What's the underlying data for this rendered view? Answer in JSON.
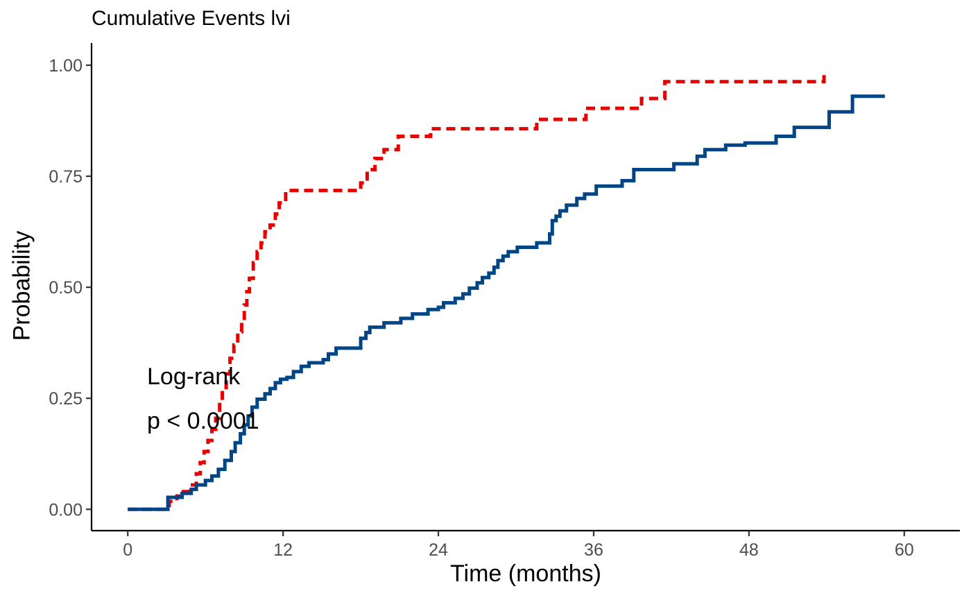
{
  "chart_data": {
    "type": "line",
    "title": "Cumulative Events lvi",
    "xlabel": "Time (months)",
    "ylabel": "Probability",
    "xlim": [
      -2.8,
      64.3
    ],
    "ylim": [
      -0.048,
      1.05
    ],
    "x_ticks": [
      0,
      12,
      24,
      36,
      48,
      60
    ],
    "y_ticks": [
      0.0,
      0.25,
      0.5,
      0.75,
      1.0
    ],
    "x_tick_labels": [
      "0",
      "12",
      "24",
      "36",
      "48",
      "60"
    ],
    "y_tick_labels": [
      "0.00",
      "0.25",
      "0.50",
      "0.75",
      "1.00"
    ],
    "grid": false,
    "annotations": [
      "Log-rank",
      "p < 0.0001"
    ],
    "colors": {
      "solid_series": "#004586",
      "dashed_series": "#e60000",
      "axis": "#000000",
      "tick_label": "#4d4d4d"
    },
    "series": [
      {
        "style": "solid",
        "color": "#004586",
        "x": [
          0,
          3.1,
          4.2,
          4.9,
          5.3,
          6.0,
          6.5,
          7.0,
          7.5,
          8.0,
          8.3,
          8.7,
          9.0,
          9.3,
          9.6,
          10.0,
          10.6,
          11.0,
          11.4,
          11.8,
          12.3,
          12.8,
          13.4,
          14.0,
          15.1,
          15.5,
          16.1,
          18.0,
          18.4,
          18.7,
          19.8,
          21.1,
          22.0,
          23.2,
          24.0,
          24.4,
          25.3,
          25.9,
          26.4,
          27.0,
          27.4,
          27.9,
          28.3,
          28.6,
          29.0,
          29.4,
          30.1,
          31.6,
          32.6,
          32.8,
          33.1,
          33.4,
          33.9,
          34.7,
          35.3,
          36.2,
          38.2,
          39.1,
          42.2,
          44.0,
          44.6,
          46.2,
          47.7,
          50.1,
          51.5,
          52.0,
          54.2,
          56.0,
          58.5
        ],
        "y": [
          0.0,
          0.027,
          0.036,
          0.045,
          0.055,
          0.065,
          0.075,
          0.09,
          0.11,
          0.13,
          0.15,
          0.17,
          0.19,
          0.21,
          0.23,
          0.248,
          0.26,
          0.272,
          0.285,
          0.293,
          0.297,
          0.31,
          0.322,
          0.33,
          0.337,
          0.35,
          0.363,
          0.385,
          0.398,
          0.41,
          0.42,
          0.43,
          0.44,
          0.45,
          0.455,
          0.465,
          0.475,
          0.485,
          0.498,
          0.51,
          0.522,
          0.532,
          0.545,
          0.56,
          0.57,
          0.58,
          0.59,
          0.6,
          0.62,
          0.65,
          0.66,
          0.672,
          0.685,
          0.7,
          0.71,
          0.728,
          0.74,
          0.765,
          0.778,
          0.795,
          0.81,
          0.82,
          0.825,
          0.84,
          0.86,
          0.86,
          0.895,
          0.93,
          0.93
        ]
      },
      {
        "style": "dashed",
        "color": "#e60000",
        "x": [
          0,
          3.2,
          3.8,
          4.3,
          4.8,
          5.3,
          5.6,
          5.9,
          6.2,
          6.5,
          6.8,
          7.1,
          7.3,
          7.6,
          7.9,
          8.2,
          8.5,
          8.8,
          9.0,
          9.2,
          9.4,
          9.7,
          10.0,
          10.3,
          10.6,
          11.0,
          11.4,
          11.7,
          12.2,
          17.1,
          18.0,
          18.5,
          19.1,
          19.8,
          20.9,
          23.4,
          30.9,
          31.6,
          34.7,
          35.4,
          38.5,
          39.7,
          40.6,
          41.5,
          53.5,
          53.8
        ],
        "y": [
          0.0,
          0.018,
          0.03,
          0.04,
          0.055,
          0.08,
          0.105,
          0.13,
          0.155,
          0.18,
          0.205,
          0.24,
          0.27,
          0.305,
          0.34,
          0.37,
          0.4,
          0.43,
          0.46,
          0.49,
          0.52,
          0.555,
          0.58,
          0.6,
          0.625,
          0.64,
          0.665,
          0.69,
          0.718,
          0.718,
          0.735,
          0.765,
          0.79,
          0.81,
          0.84,
          0.857,
          0.857,
          0.878,
          0.878,
          0.903,
          0.903,
          0.925,
          0.925,
          0.963,
          0.963,
          0.99
        ]
      }
    ]
  }
}
